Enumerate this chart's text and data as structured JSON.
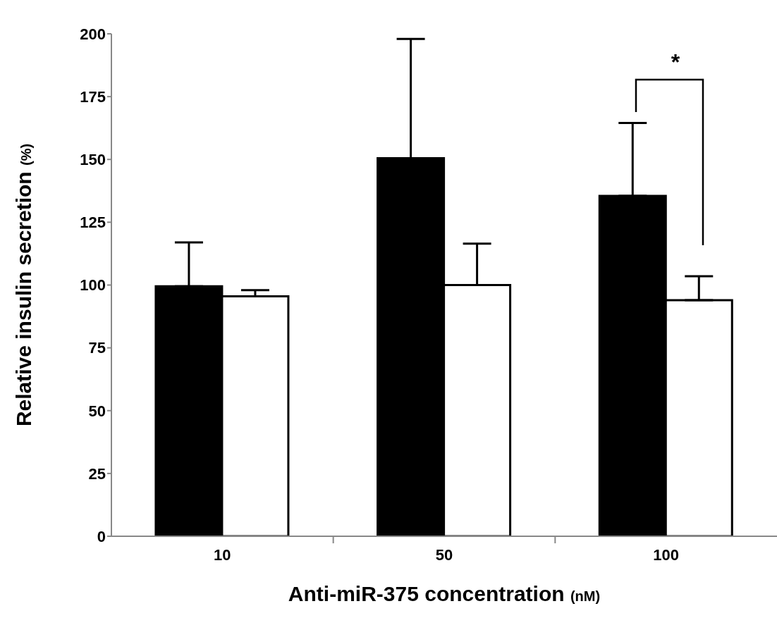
{
  "chart_data": {
    "type": "bar",
    "xlabel": "Anti-miR-375 concentration (nM)",
    "ylabel": "Relative insulin secretion (%)",
    "categories": [
      "10",
      "50",
      "100"
    ],
    "series": [
      {
        "color": "#000000",
        "values": [
          99.5,
          150.5,
          135.5
        ],
        "errors": [
          [
            99.5,
            117
          ],
          [
            150.5,
            198
          ],
          [
            135.5,
            164.5
          ]
        ]
      },
      {
        "color": "#ffffff",
        "values": [
          95.5,
          100,
          94
        ],
        "errors": [
          [
            95.5,
            98
          ],
          [
            100,
            116.5
          ],
          [
            94,
            103.5
          ]
        ]
      }
    ],
    "ylim": [
      0,
      200
    ],
    "yticks": [
      0,
      25,
      50,
      75,
      100,
      125,
      150,
      175,
      200
    ],
    "grid": false,
    "legend": false,
    "annotations": [
      "*"
    ]
  }
}
